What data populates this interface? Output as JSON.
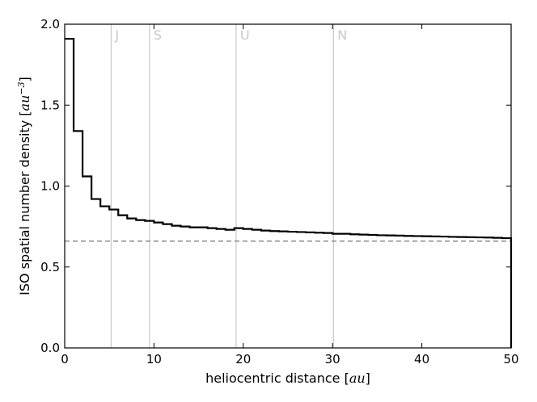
{
  "chart_data": {
    "type": "line",
    "step": true,
    "xlabel_text": "heliocentric distance [",
    "xlabel_unit": "au",
    "xlabel_close": "]",
    "ylabel_text": "ISO spatial number density [",
    "ylabel_unit": "au",
    "ylabel_exp": "−3",
    "ylabel_close": "]",
    "xlim": [
      0,
      50
    ],
    "ylim": [
      0.0,
      2.0
    ],
    "xticks": [
      0,
      10,
      20,
      30,
      40,
      50
    ],
    "yticks": [
      "0.0",
      "0.5",
      "1.0",
      "1.5",
      "2.0"
    ],
    "grid": false,
    "series": [
      {
        "color": "#000000",
        "x": [
          0,
          1,
          2,
          3,
          4,
          5,
          6,
          7,
          8,
          9,
          10,
          11,
          12,
          13,
          14,
          15,
          16,
          17,
          18,
          19,
          20,
          21,
          22,
          23,
          24,
          25,
          26,
          27,
          28,
          29,
          30,
          31,
          32,
          33,
          34,
          35,
          36,
          37,
          38,
          39,
          40,
          41,
          42,
          43,
          44,
          45,
          46,
          47,
          48,
          49,
          50
        ],
        "y": [
          1.91,
          1.34,
          1.06,
          0.92,
          0.875,
          0.855,
          0.82,
          0.8,
          0.79,
          0.785,
          0.775,
          0.765,
          0.755,
          0.75,
          0.745,
          0.745,
          0.74,
          0.735,
          0.73,
          0.74,
          0.735,
          0.73,
          0.725,
          0.722,
          0.72,
          0.718,
          0.716,
          0.714,
          0.712,
          0.71,
          0.705,
          0.705,
          0.702,
          0.7,
          0.698,
          0.696,
          0.695,
          0.694,
          0.692,
          0.691,
          0.69,
          0.689,
          0.688,
          0.686,
          0.685,
          0.684,
          0.683,
          0.682,
          0.68,
          0.678,
          0.675
        ]
      }
    ],
    "reference_line": {
      "y": 0.66,
      "color": "#808080",
      "style": "dashed"
    },
    "planet_lines": [
      {
        "label": "J",
        "x": 5.2
      },
      {
        "label": "S",
        "x": 9.5
      },
      {
        "label": "U",
        "x": 19.2
      },
      {
        "label": "N",
        "x": 30.1
      }
    ],
    "planet_line_color": "#c8c8c8"
  }
}
